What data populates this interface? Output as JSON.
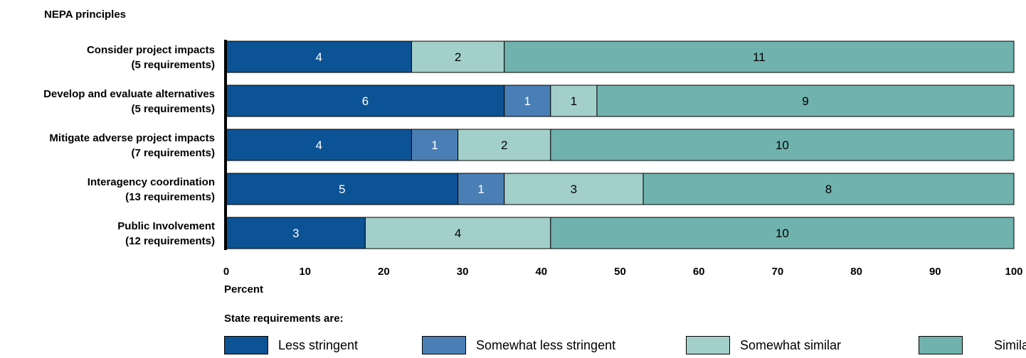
{
  "chart_data": {
    "type": "bar",
    "orientation": "horizontal",
    "stacked": true,
    "title": "NEPA principles",
    "xlabel": "Percent",
    "xlim": [
      0,
      100
    ],
    "xticks": [
      0,
      10,
      20,
      30,
      40,
      50,
      60,
      70,
      80,
      90,
      100
    ],
    "grid": false,
    "legend_title": "State requirements are:",
    "legend_position": "bottom",
    "categories": [
      [
        "Consider project impacts",
        "(5 requirements)"
      ],
      [
        "Develop and evaluate alternatives",
        "(5 requirements)"
      ],
      [
        "Mitigate adverse project impacts",
        "(7 requirements)"
      ],
      [
        "Interagency coordination",
        "(13 requirements)"
      ],
      [
        "Public Involvement",
        "(12 requirements)"
      ]
    ],
    "series": [
      {
        "name": "Less stringent",
        "color": "#0b5394",
        "label_color": "#ffffff",
        "counts": [
          4,
          6,
          4,
          5,
          3
        ]
      },
      {
        "name": "Somewhat less stringent",
        "color": "#4a7fb5",
        "label_color": "#ffffff",
        "counts": [
          0,
          1,
          1,
          1,
          0
        ]
      },
      {
        "name": "Somewhat similar",
        "color": "#a3cfcb",
        "label_color": "#000000",
        "counts": [
          2,
          1,
          2,
          3,
          4
        ]
      },
      {
        "name": "Similar",
        "color": "#70b2ad",
        "label_color": "#000000",
        "counts": [
          11,
          9,
          10,
          8,
          10
        ]
      }
    ]
  }
}
